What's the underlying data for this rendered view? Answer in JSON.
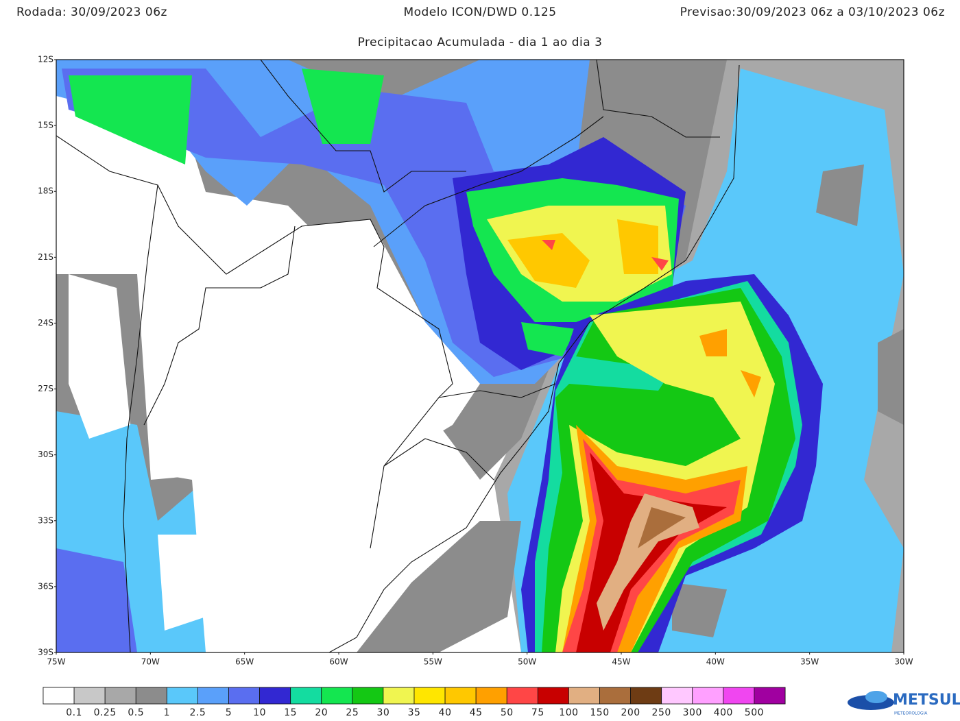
{
  "header": {
    "run": "Rodada: 30/09/2023 06z",
    "model": "Modelo ICON/DWD 0.125",
    "forecast": "Previsao:30/09/2023 06z a 03/10/2023 06z",
    "subtitle": "Precipitacao Acumulada - dia 1 ao dia 3"
  },
  "map": {
    "lat_labels": [
      "12S",
      "15S",
      "18S",
      "21S",
      "24S",
      "27S",
      "30S",
      "33S",
      "36S",
      "39S"
    ],
    "lon_labels": [
      "75W",
      "70W",
      "65W",
      "60W",
      "55W",
      "50W",
      "45W",
      "40W",
      "35W",
      "30W"
    ]
  },
  "legend": {
    "colors": [
      "#ffffff",
      "#c8c8c8",
      "#a8a8a8",
      "#8c8c8c",
      "#5ac8fa",
      "#5aa0fa",
      "#5a6ef0",
      "#3228d2",
      "#14dca0",
      "#14e650",
      "#14c814",
      "#f0f550",
      "#ffe600",
      "#ffc800",
      "#ffa000",
      "#ff4646",
      "#c80000",
      "#e1af82",
      "#aa6e3c",
      "#6e3c14",
      "#ffc8ff",
      "#ffa0ff",
      "#f046f0",
      "#a000a0"
    ],
    "labels": [
      "0.1",
      "0.25",
      "0.5",
      "1",
      "2.5",
      "5",
      "10",
      "15",
      "20",
      "25",
      "30",
      "35",
      "40",
      "45",
      "50",
      "75",
      "100",
      "150",
      "200",
      "250",
      "300",
      "400",
      "500"
    ]
  },
  "logo": {
    "name": "METSUL",
    "tagline": "METEOROLOGIA"
  }
}
